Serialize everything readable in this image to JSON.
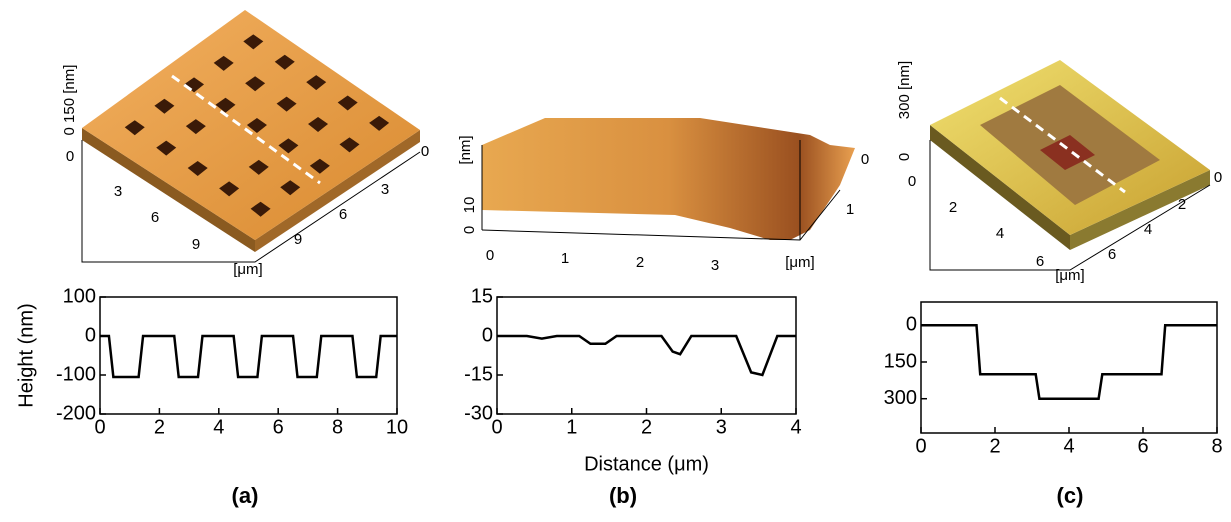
{
  "chart_data": [
    {
      "type": "line",
      "panel_label": "(a)",
      "y_label": "Height (nm)",
      "color": "#000000",
      "x": [
        0,
        0.3,
        0.45,
        1.3,
        1.45,
        2.5,
        2.65,
        3.3,
        3.45,
        4.5,
        4.65,
        5.3,
        5.45,
        6.5,
        6.65,
        7.3,
        7.45,
        8.5,
        8.65,
        9.3,
        9.45,
        10
      ],
      "values": [
        0,
        0,
        -105,
        -105,
        0,
        0,
        -105,
        -105,
        0,
        0,
        -105,
        -105,
        0,
        0,
        -105,
        -105,
        0,
        0,
        -105,
        -105,
        0,
        0
      ],
      "xlim": [
        0,
        10
      ],
      "xticks": [
        0,
        2,
        4,
        6,
        8,
        10
      ],
      "ylim": [
        -200,
        100
      ],
      "yticks": [
        -200,
        -100,
        0,
        100
      ]
    },
    {
      "type": "line",
      "panel_label": "(b)",
      "x_label": "Distance (μm)",
      "color": "#000000",
      "x": [
        0,
        0.4,
        0.6,
        0.8,
        1.1,
        1.25,
        1.45,
        1.6,
        2.2,
        2.35,
        2.45,
        2.6,
        3.2,
        3.4,
        3.55,
        3.75,
        4
      ],
      "values": [
        0,
        0,
        -1,
        0,
        0,
        -3,
        -3,
        0,
        0,
        -6,
        -7,
        0,
        0,
        -14,
        -15,
        0,
        0
      ],
      "xlim": [
        0,
        4
      ],
      "xticks": [
        0,
        1,
        2,
        3,
        4
      ],
      "ylim": [
        -30,
        15
      ],
      "yticks": [
        -30,
        -15,
        0,
        15
      ]
    },
    {
      "type": "line",
      "panel_label": "(c)",
      "color": "#000000",
      "x": [
        0,
        1.5,
        1.6,
        3.1,
        3.2,
        4.8,
        4.9,
        6.5,
        6.6,
        8
      ],
      "values": [
        0,
        0,
        200,
        200,
        300,
        300,
        200,
        200,
        0,
        0
      ],
      "xlim": [
        0,
        8
      ],
      "xticks": [
        0,
        2,
        4,
        6,
        8
      ],
      "ylim": [
        440,
        -95
      ],
      "yticks": [
        0,
        150,
        300
      ]
    }
  ],
  "surface_plots": [
    {
      "labels": [
        "0 150 [nm]",
        "0",
        "3",
        "6",
        "9",
        "[μm]",
        "0",
        "3",
        "6",
        "9"
      ]
    },
    {
      "labels": [
        "[nm]",
        "10",
        "0",
        "0",
        "1",
        "2",
        "3",
        "[μm]",
        "0",
        "1"
      ]
    },
    {
      "labels": [
        "300 [nm]",
        "0",
        "0",
        "2",
        "4",
        "6",
        "[μm]",
        "0",
        "2",
        "4",
        "6"
      ]
    }
  ]
}
